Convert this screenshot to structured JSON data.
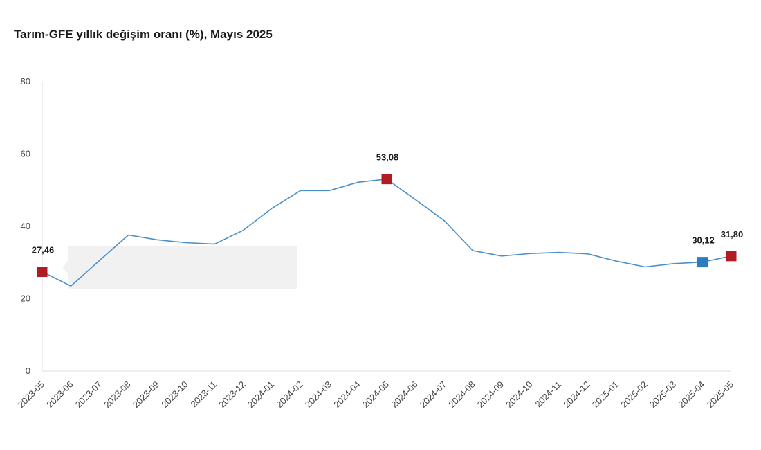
{
  "chart_data": {
    "type": "line",
    "title": "Tarım-GFE yıllık değişim oranı (%), Mayıs 2025",
    "xlabel": "",
    "ylabel": "",
    "ylim": [
      0,
      80
    ],
    "yticks": [
      0,
      20,
      40,
      60,
      80
    ],
    "grid": false,
    "categories": [
      "2023-05",
      "2023-06",
      "2023-07",
      "2023-08",
      "2023-09",
      "2023-10",
      "2023-11",
      "2023-12",
      "2024-01",
      "2024-02",
      "2024-03",
      "2024-04",
      "2024-05",
      "2024-06",
      "2024-07",
      "2024-08",
      "2024-09",
      "2024-10",
      "2024-11",
      "2024-12",
      "2025-01",
      "2025-02",
      "2025-03",
      "2025-04",
      "2025-05"
    ],
    "series": [
      {
        "name": "Tarım-GFE yıllık değişim oranı (%)",
        "color": "#4a90c8",
        "values": [
          27.46,
          23.5,
          30.6,
          37.6,
          36.3,
          35.5,
          35.1,
          38.9,
          45.0,
          49.9,
          49.9,
          52.2,
          53.08,
          47.4,
          41.6,
          33.3,
          31.8,
          32.5,
          32.8,
          32.4,
          30.4,
          28.8,
          29.7,
          30.12,
          31.8
        ]
      }
    ],
    "markers": [
      {
        "index": 0,
        "label": "27,46",
        "color": "#b01c22"
      },
      {
        "index": 12,
        "label": "53,08",
        "color": "#b01c22"
      },
      {
        "index": 23,
        "label": "30,12",
        "color": "#2e7cc0"
      },
      {
        "index": 24,
        "label": "31,80",
        "color": "#b01c22"
      }
    ]
  }
}
